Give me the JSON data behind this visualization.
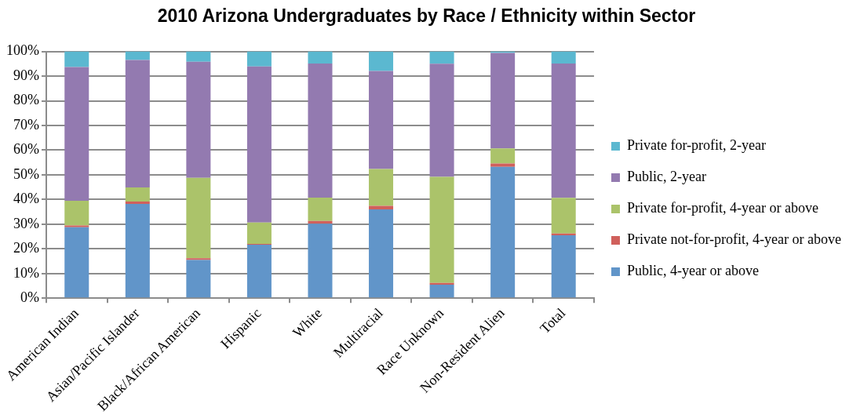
{
  "chart_data": {
    "type": "bar",
    "title": "2010 Arizona Undergraduates by Race / Ethnicity within Sector",
    "categories": [
      "American Indian",
      "Asian/Pacific Islander",
      "Black/African American",
      "Hispanic",
      "White",
      "Multiracial",
      "Race Unknown",
      "Non-Resident Alien",
      "Total"
    ],
    "stacked": true,
    "series": [
      {
        "name": "Public, 4-year or above",
        "color": "#6195c9",
        "values": [
          28.8,
          38.2,
          15.5,
          21.7,
          30.2,
          36.0,
          5.5,
          53.2,
          25.5
        ]
      },
      {
        "name": "Private not-for-profit, 4-year or above",
        "color": "#d0605c",
        "values": [
          0.7,
          1.0,
          0.7,
          0.3,
          1.1,
          1.4,
          0.7,
          1.4,
          0.7
        ]
      },
      {
        "name": "Private for-profit, 4-year or above",
        "color": "#abc36a",
        "values": [
          10.0,
          5.7,
          32.6,
          8.7,
          9.5,
          15.0,
          43.0,
          6.1,
          14.5
        ]
      },
      {
        "name": "Public, 2-year",
        "color": "#937ab0",
        "values": [
          54.2,
          51.6,
          47.0,
          63.2,
          54.3,
          39.7,
          45.8,
          38.7,
          54.4
        ]
      },
      {
        "name": "Private for-profit, 2-year",
        "color": "#5bb8d0",
        "values": [
          6.3,
          3.5,
          4.2,
          6.1,
          4.9,
          7.9,
          5.0,
          0.6,
          4.9
        ]
      }
    ],
    "ylim": [
      0,
      100
    ],
    "yticks": [
      {
        "value": 0,
        "label": "0%"
      },
      {
        "value": 10,
        "label": "10%"
      },
      {
        "value": 20,
        "label": "20%"
      },
      {
        "value": 30,
        "label": "30%"
      },
      {
        "value": 40,
        "label": "40%"
      },
      {
        "value": 50,
        "label": "50%"
      },
      {
        "value": 60,
        "label": "60%"
      },
      {
        "value": 70,
        "label": "70%"
      },
      {
        "value": 80,
        "label": "80%"
      },
      {
        "value": 90,
        "label": "90%"
      },
      {
        "value": 100,
        "label": "100%"
      }
    ],
    "grid": "y",
    "legend": "right"
  }
}
